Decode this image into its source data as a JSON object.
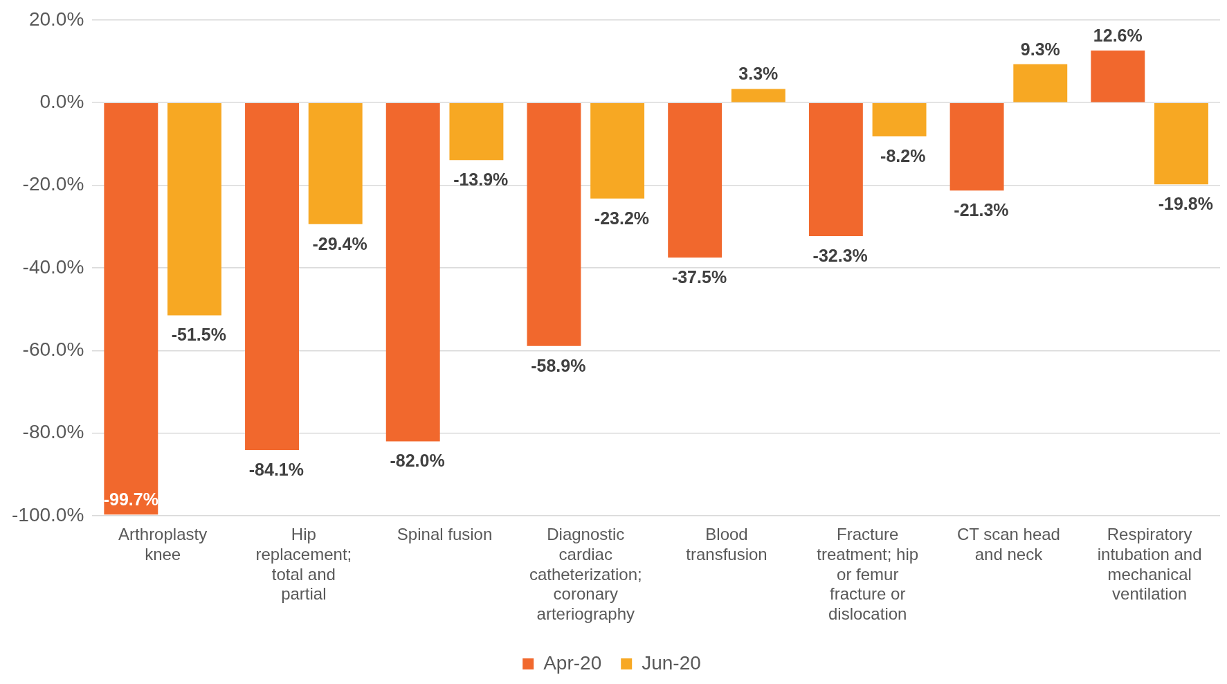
{
  "chart_data": {
    "type": "bar",
    "categories": [
      "Arthroplasty knee",
      "Hip replacement; total and partial",
      "Spinal fusion",
      "Diagnostic cardiac catheterization; coronary arteriography",
      "Blood transfusion",
      "Fracture treatment; hip or femur fracture or dislocation",
      "CT scan head and neck",
      "Respiratory intubation and mechanical ventilation"
    ],
    "series": [
      {
        "name": "Apr-20",
        "color": "#f1682d",
        "values": [
          -99.7,
          -84.1,
          -82.0,
          -58.9,
          -37.5,
          -32.3,
          -21.3,
          12.6
        ],
        "value_labels": [
          "-99.7%",
          "-84.1%",
          "-82.0%",
          "-58.9%",
          "-37.5%",
          "-32.3%",
          "-21.3%",
          "12.6%"
        ]
      },
      {
        "name": "Jun-20",
        "color": "#f7a823",
        "values": [
          -51.5,
          -29.4,
          -13.9,
          -23.2,
          3.3,
          -8.2,
          9.3,
          -19.8
        ],
        "value_labels": [
          "-51.5%",
          "-29.4%",
          "-13.9%",
          "-23.2%",
          "3.3%",
          "-8.2%",
          "9.3%",
          "-19.8%"
        ]
      }
    ],
    "ylim": [
      -100,
      20
    ],
    "yticks": [
      {
        "value": -100,
        "label": "-100.0%"
      },
      {
        "value": -80,
        "label": "-80.0%"
      },
      {
        "value": -60,
        "label": "-60.0%"
      },
      {
        "value": -40,
        "label": "-40.0%"
      },
      {
        "value": -20,
        "label": "-20.0%"
      },
      {
        "value": 0,
        "label": "0.0%"
      },
      {
        "value": 20,
        "label": "20.0%"
      }
    ],
    "grid": "y",
    "legend": "bottom"
  }
}
